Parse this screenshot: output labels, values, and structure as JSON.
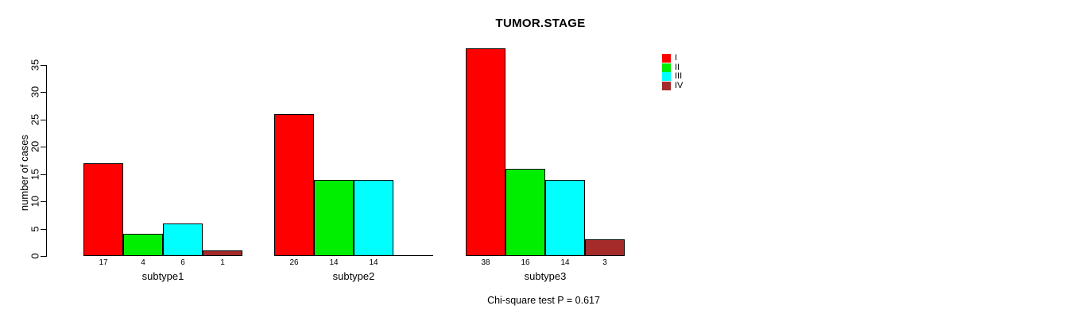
{
  "chart_data": {
    "type": "bar",
    "title": "TUMOR.STAGE",
    "ylabel": "number of cases",
    "footnote": "Chi-square test P = 0.617",
    "ylim": [
      0,
      35
    ],
    "yticks": [
      0,
      5,
      10,
      15,
      20,
      25,
      30,
      35
    ],
    "grid": false,
    "legend_position": "top-right",
    "categories": [
      "subtype1",
      "subtype2",
      "subtype3"
    ],
    "series": [
      {
        "name": "I",
        "color": "#ff0000",
        "values": [
          17,
          26,
          38
        ]
      },
      {
        "name": "II",
        "color": "#00ee00",
        "values": [
          4,
          14,
          16
        ]
      },
      {
        "name": "III",
        "color": "#00ffff",
        "values": [
          6,
          14,
          14
        ]
      },
      {
        "name": "IV",
        "color": "#a52a2a",
        "values": [
          1,
          0,
          3
        ]
      }
    ],
    "bar_count_labels": [
      [
        "17",
        "4",
        "6",
        "1"
      ],
      [
        "26",
        "14",
        "14",
        ""
      ],
      [
        "38",
        "16",
        "14",
        "3"
      ]
    ]
  }
}
